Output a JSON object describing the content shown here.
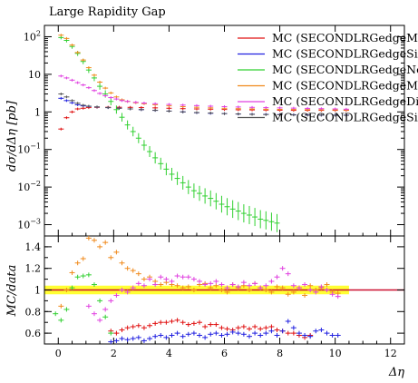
{
  "chart_data": [
    {
      "type": "scatter",
      "title": "Large Rapidity Gap",
      "ylabel": "dσ/dΔη [pb]",
      "yscale": "log",
      "ylim": [
        0.0005,
        200
      ],
      "xlim": [
        -0.5,
        12.5
      ],
      "x_ticks": [
        0,
        2,
        4,
        6,
        8,
        10,
        12
      ],
      "y_ticks": [
        {
          "value": 0.001,
          "label": "10",
          "sup": "−3"
        },
        {
          "value": 0.01,
          "label": "10",
          "sup": "−2"
        },
        {
          "value": 0.1,
          "label": "10",
          "sup": "−1"
        },
        {
          "value": 1,
          "label": "1",
          "sup": ""
        },
        {
          "value": 10,
          "label": "10",
          "sup": ""
        },
        {
          "value": 100,
          "label": "10",
          "sup": "2"
        }
      ],
      "legend_position": "top-right",
      "series": [
        {
          "name": "MC (SECONDLRGedgeMax)",
          "color": "#e01010",
          "x": [
            0.1,
            0.3,
            0.5,
            0.7,
            0.9,
            1.1,
            1.4,
            1.8,
            2.2,
            2.6,
            3.0,
            3.5,
            4.0,
            4.5,
            5.0,
            5.5,
            6.0,
            6.5,
            7.0,
            7.5,
            8.0,
            8.5,
            9.0,
            9.5,
            10.0,
            10.4
          ],
          "y": [
            0.35,
            0.7,
            1.0,
            1.2,
            1.25,
            1.3,
            1.32,
            1.33,
            1.33,
            1.32,
            1.3,
            1.28,
            1.25,
            1.22,
            1.2,
            1.18,
            1.16,
            1.14,
            1.13,
            1.12,
            1.11,
            1.1,
            1.1,
            1.1,
            1.1,
            1.1
          ]
        },
        {
          "name": "MC (SECONDLRGedgeSinglePass)",
          "color": "#2020e0",
          "x": [
            0.1,
            0.3,
            0.5,
            0.7,
            0.9,
            1.1,
            1.4,
            1.8,
            2.2,
            2.6,
            3.0,
            3.5,
            4.0,
            4.5,
            5.0,
            5.5,
            6.0,
            6.5,
            7.0,
            7.5,
            8.0,
            8.5,
            9.0,
            9.5,
            10.0,
            10.4
          ],
          "y": [
            2.3,
            2.0,
            1.75,
            1.55,
            1.45,
            1.4,
            1.35,
            1.3,
            1.25,
            1.2,
            1.15,
            1.1,
            1.05,
            1.0,
            0.95,
            0.92,
            0.9,
            0.88,
            0.87,
            0.86,
            0.85,
            0.84,
            0.83,
            0.82,
            0.82,
            0.82
          ]
        },
        {
          "name": "MC (SECONDLRGedgeNone)",
          "color": "#30d030",
          "x": [
            0.1,
            0.3,
            0.5,
            0.7,
            0.9,
            1.1,
            1.3,
            1.5,
            1.7,
            1.9,
            2.1,
            2.3,
            2.5,
            2.7,
            2.9,
            3.1,
            3.3,
            3.5,
            3.7,
            3.9,
            4.1,
            4.3,
            4.5,
            4.7,
            4.9,
            5.1,
            5.3,
            5.5,
            5.7,
            5.9,
            6.1,
            6.3,
            6.5,
            6.7,
            6.9,
            7.1,
            7.3,
            7.5,
            7.7,
            7.9
          ],
          "y": [
            95,
            80,
            55,
            36,
            22,
            13,
            8,
            4.8,
            3.0,
            1.9,
            1.15,
            0.72,
            0.45,
            0.3,
            0.2,
            0.13,
            0.088,
            0.06,
            0.042,
            0.03,
            0.022,
            0.017,
            0.013,
            0.01,
            0.008,
            0.0068,
            0.0058,
            0.005,
            0.0042,
            0.0035,
            0.003,
            0.0026,
            0.0023,
            0.002,
            0.0018,
            0.0016,
            0.0014,
            0.0013,
            0.0012,
            0.0011
          ]
        },
        {
          "name": "MC (SECONDLRGedgeMin)",
          "color": "#f08a1c",
          "x": [
            0.1,
            0.3,
            0.5,
            0.7,
            0.9,
            1.1,
            1.3,
            1.5,
            1.7,
            1.9,
            2.1,
            2.3,
            2.5,
            2.8,
            3.1,
            3.5,
            4.0,
            4.5,
            5.0,
            5.5,
            6.0,
            6.5,
            7.0,
            7.5,
            8.0,
            8.5,
            9.0,
            9.5,
            10.0,
            10.4
          ],
          "y": [
            110,
            90,
            60,
            38,
            24,
            15,
            9.5,
            6.2,
            4.3,
            3.2,
            2.5,
            2.1,
            1.9,
            1.75,
            1.65,
            1.55,
            1.45,
            1.38,
            1.33,
            1.28,
            1.25,
            1.22,
            1.2,
            1.18,
            1.17,
            1.16,
            1.15,
            1.14,
            1.13,
            1.12
          ]
        },
        {
          "name": "MC (SECONDLRGedgeDijet)",
          "color": "#e040e0",
          "x": [
            0.1,
            0.3,
            0.5,
            0.7,
            0.9,
            1.1,
            1.3,
            1.5,
            1.7,
            1.9,
            2.1,
            2.3,
            2.5,
            2.8,
            3.1,
            3.5,
            4.0,
            4.5,
            5.0,
            5.5,
            6.0,
            6.5,
            7.0,
            7.5,
            8.0,
            8.5,
            9.0,
            9.5,
            10.0,
            10.4
          ],
          "y": [
            9,
            8,
            7,
            6,
            5.2,
            4.4,
            3.7,
            3.1,
            2.7,
            2.4,
            2.2,
            2.0,
            1.9,
            1.8,
            1.72,
            1.65,
            1.58,
            1.52,
            1.47,
            1.42,
            1.38,
            1.35,
            1.32,
            1.3,
            1.28,
            1.26,
            1.24,
            1.22,
            1.2,
            1.18
          ]
        },
        {
          "name": "MC (SECONDLRGedgeSingle)",
          "color": "#555555",
          "x": [
            0.1,
            0.3,
            0.5,
            0.7,
            0.9,
            1.1,
            1.4,
            1.8,
            2.2,
            2.6,
            3.0,
            3.5,
            4.0,
            4.5,
            5.0,
            5.5,
            6.0,
            6.5,
            7.0,
            7.5,
            8.0,
            8.5,
            9.0,
            9.5,
            10.0,
            10.4
          ],
          "y": [
            3.0,
            2.5,
            2.0,
            1.7,
            1.5,
            1.42,
            1.36,
            1.3,
            1.25,
            1.2,
            1.15,
            1.1,
            1.05,
            1.0,
            0.96,
            0.93,
            0.9,
            0.88,
            0.86,
            0.85,
            0.84,
            0.83,
            0.82,
            0.82,
            0.81,
            0.81
          ]
        }
      ]
    },
    {
      "type": "scatter",
      "ylabel": "MC/data",
      "xlabel": "Δη",
      "ylim": [
        0.5,
        1.5
      ],
      "xlim": [
        -0.5,
        12.5
      ],
      "x_ticks": [
        0,
        2,
        4,
        6,
        8,
        10,
        12
      ],
      "y_ticks": [
        0.6,
        0.8,
        1,
        1.2,
        1.4
      ],
      "reference_line": 1,
      "band_color": "#ffff33",
      "band": {
        "x": [
          -0.5,
          10.5
        ],
        "lower": [
          0.96,
          0.96
        ],
        "upper": [
          1.04,
          1.04
        ]
      },
      "series": [
        {
          "name": "MC (SECONDLRGedgeMax)",
          "color": "#e01010",
          "x": [
            1.9,
            2.1,
            2.3,
            2.5,
            2.7,
            2.9,
            3.1,
            3.3,
            3.5,
            3.7,
            3.9,
            4.1,
            4.3,
            4.5,
            4.7,
            4.9,
            5.1,
            5.3,
            5.5,
            5.7,
            5.9,
            6.1,
            6.3,
            6.5,
            6.7,
            6.9,
            7.1,
            7.3,
            7.5,
            7.7,
            7.9,
            8.1,
            8.3,
            8.5,
            8.7,
            8.9,
            9.1
          ],
          "y": [
            0.62,
            0.6,
            0.63,
            0.65,
            0.66,
            0.67,
            0.65,
            0.67,
            0.69,
            0.7,
            0.7,
            0.71,
            0.72,
            0.7,
            0.68,
            0.69,
            0.7,
            0.66,
            0.68,
            0.68,
            0.65,
            0.64,
            0.63,
            0.65,
            0.66,
            0.64,
            0.66,
            0.64,
            0.65,
            0.66,
            0.63,
            0.62,
            0.6,
            0.6,
            0.58,
            0.56,
            0.58
          ]
        },
        {
          "name": "MC (SECONDLRGedgeSinglePass)",
          "color": "#2020e0",
          "x": [
            1.9,
            2.1,
            2.3,
            2.5,
            2.7,
            2.9,
            3.1,
            3.3,
            3.5,
            3.7,
            3.9,
            4.1,
            4.3,
            4.5,
            4.7,
            4.9,
            5.1,
            5.3,
            5.5,
            5.7,
            5.9,
            6.1,
            6.3,
            6.5,
            6.7,
            6.9,
            7.1,
            7.3,
            7.5,
            7.7,
            7.9,
            8.1,
            8.3,
            8.5,
            8.7,
            8.9,
            9.1,
            9.3,
            9.5,
            9.7,
            9.9,
            10.1
          ],
          "y": [
            0.52,
            0.53,
            0.55,
            0.54,
            0.55,
            0.56,
            0.53,
            0.55,
            0.57,
            0.58,
            0.56,
            0.58,
            0.6,
            0.57,
            0.59,
            0.6,
            0.58,
            0.56,
            0.59,
            0.6,
            0.58,
            0.59,
            0.61,
            0.6,
            0.59,
            0.57,
            0.6,
            0.58,
            0.6,
            0.62,
            0.58,
            0.62,
            0.71,
            0.65,
            0.6,
            0.58,
            0.57,
            0.62,
            0.63,
            0.6,
            0.58,
            0.58
          ]
        },
        {
          "name": "MC (SECONDLRGedgeNone)",
          "color": "#30d030",
          "x": [
            -0.1,
            0.1,
            0.3,
            0.5,
            0.7,
            0.9,
            1.1,
            1.3,
            1.5,
            1.7,
            1.9
          ],
          "y": [
            0.78,
            0.72,
            0.82,
            1.02,
            1.12,
            1.13,
            1.14,
            1.05,
            0.9,
            0.75,
            0.6
          ]
        },
        {
          "name": "MC (SECONDLRGedgeMin)",
          "color": "#f08a1c",
          "x": [
            0.1,
            0.3,
            0.5,
            0.7,
            0.9,
            1.1,
            1.3,
            1.5,
            1.7,
            1.9,
            2.1,
            2.3,
            2.5,
            2.7,
            2.9,
            3.1,
            3.3,
            3.5,
            3.7,
            3.9,
            4.1,
            4.3,
            4.5,
            4.7,
            4.9,
            5.1,
            5.3,
            5.5,
            5.7,
            5.9,
            6.1,
            6.3,
            6.5,
            6.7,
            6.9,
            7.1,
            7.3,
            7.5,
            7.7,
            7.9,
            8.1,
            8.3,
            8.5,
            8.7,
            8.9,
            9.1,
            9.3,
            9.5,
            9.7,
            9.9,
            10.1
          ],
          "y": [
            0.85,
            1.0,
            1.16,
            1.25,
            1.29,
            1.48,
            1.46,
            1.4,
            1.44,
            1.3,
            1.35,
            1.25,
            1.2,
            1.18,
            1.15,
            1.1,
            1.12,
            1.08,
            1.05,
            1.07,
            1.05,
            1.04,
            1.02,
            1.03,
            1.0,
            1.05,
            1.06,
            1.02,
            1.04,
            1.0,
            0.98,
            1.05,
            1.02,
            1.04,
            1.0,
            1.06,
            1.02,
            1.0,
            0.98,
            1.03,
            1.02,
            0.96,
            0.98,
            1.02,
            0.95,
            1.04,
            1.0,
            1.02,
            1.05,
            0.98,
            0.97
          ]
        },
        {
          "name": "MC (SECONDLRGedgeDijet)",
          "color": "#e040e0",
          "x": [
            1.1,
            1.3,
            1.5,
            1.7,
            1.9,
            2.1,
            2.3,
            2.5,
            2.7,
            2.9,
            3.1,
            3.3,
            3.5,
            3.7,
            3.9,
            4.1,
            4.3,
            4.5,
            4.7,
            4.9,
            5.1,
            5.3,
            5.5,
            5.7,
            5.9,
            6.1,
            6.3,
            6.5,
            6.7,
            6.9,
            7.1,
            7.3,
            7.5,
            7.7,
            7.9,
            8.1,
            8.3,
            8.5,
            8.7,
            8.9,
            9.1,
            9.3,
            9.5,
            9.7,
            9.9,
            10.1
          ],
          "y": [
            0.85,
            0.78,
            0.72,
            0.82,
            0.9,
            0.95,
            1.0,
            0.98,
            1.02,
            1.06,
            1.04,
            1.1,
            1.05,
            1.12,
            1.1,
            1.08,
            1.13,
            1.12,
            1.12,
            1.1,
            1.08,
            1.05,
            1.06,
            1.08,
            1.05,
            1.02,
            1.05,
            1.03,
            1.07,
            1.04,
            1.06,
            1.02,
            1.04,
            1.08,
            1.12,
            1.2,
            1.15,
            1.04,
            1.02,
            1.05,
            1.0,
            0.98,
            1.03,
            1.0,
            0.96,
            0.94
          ]
        },
        {
          "name": "MC (SECONDLRGedgeSingle)",
          "color": "#555555",
          "x": [],
          "y": []
        }
      ]
    }
  ]
}
